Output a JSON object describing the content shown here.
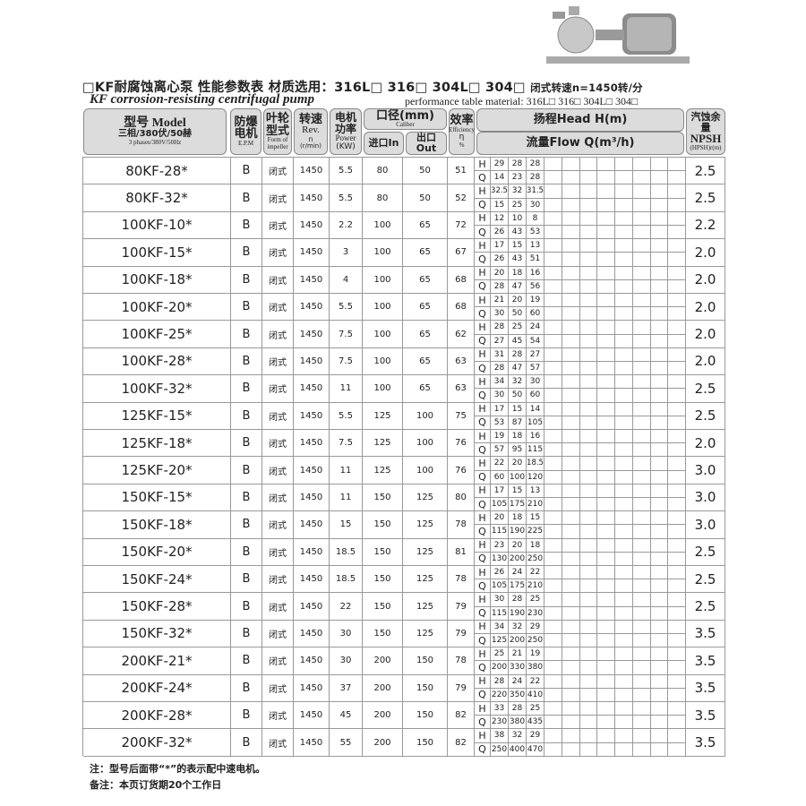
{
  "title": {
    "cn_prefix": "□KF耐腐蚀离心泵  性能参数表  材质选用：316L□  316□ 304L□ 304□",
    "cn_speed": "闭式转速n=1450转/分",
    "en_title": "KF corrosion-resisting centrifugal pump",
    "en_subtitle": "performance table  material:  316L□  316□  304L□ 304□"
  },
  "header": {
    "model_cn": "型号 Model",
    "model_sub": "三相/380伏/50赫",
    "model_en": "3 phases/380V/50Hz",
    "epm_cn": "防爆电机",
    "epm_en": "E.P.M",
    "impeller_cn": "叶轮型式",
    "impeller_en": "Form of impeller",
    "rev_cn": "转速",
    "rev_en": "Rev.",
    "rev_n": "n",
    "rev_unit": "(r/min)",
    "power_cn": "电机功率",
    "power_en": "Power",
    "power_unit": "(KW)",
    "caliber_cn": "口径(mm)",
    "caliber_en": "Caliber",
    "in_label": "进口In",
    "out_label": "出口Out",
    "eff_cn": "效率",
    "eff_en": "Efficiency",
    "eff_sym": "η",
    "eff_unit": "%",
    "head_label": "扬程Head H(m)",
    "flow_label": "流量Flow Q(m³/h)",
    "npsh_cn": "汽蚀余量",
    "npsh_en": "NPSH",
    "npsh_unit": "(HPSH)r(m)"
  },
  "rows": [
    {
      "model": "80KF-28*",
      "epm": "B",
      "impeller": "闭式",
      "rev": "1450",
      "power": "5.5",
      "in": "80",
      "out": "50",
      "eff": "51",
      "H": [
        "29",
        "28",
        "28"
      ],
      "Q": [
        "14",
        "23",
        "28"
      ],
      "npsh": "2.5"
    },
    {
      "model": "80KF-32*",
      "epm": "B",
      "impeller": "闭式",
      "rev": "1450",
      "power": "5.5",
      "in": "80",
      "out": "50",
      "eff": "52",
      "H": [
        "32.5",
        "32",
        "31.5"
      ],
      "Q": [
        "15",
        "25",
        "30"
      ],
      "npsh": "2.5"
    },
    {
      "model": "100KF-10*",
      "epm": "B",
      "impeller": "闭式",
      "rev": "1450",
      "power": "2.2",
      "in": "100",
      "out": "65",
      "eff": "72",
      "H": [
        "12",
        "10",
        "8"
      ],
      "Q": [
        "26",
        "43",
        "53"
      ],
      "npsh": "2.2"
    },
    {
      "model": "100KF-15*",
      "epm": "B",
      "impeller": "闭式",
      "rev": "1450",
      "power": "3",
      "in": "100",
      "out": "65",
      "eff": "67",
      "H": [
        "17",
        "15",
        "13"
      ],
      "Q": [
        "26",
        "43",
        "51"
      ],
      "npsh": "2.0"
    },
    {
      "model": "100KF-18*",
      "epm": "B",
      "impeller": "闭式",
      "rev": "1450",
      "power": "4",
      "in": "100",
      "out": "65",
      "eff": "68",
      "H": [
        "20",
        "18",
        "16"
      ],
      "Q": [
        "28",
        "47",
        "56"
      ],
      "npsh": "2.0"
    },
    {
      "model": "100KF-20*",
      "epm": "B",
      "impeller": "闭式",
      "rev": "1450",
      "power": "5.5",
      "in": "100",
      "out": "65",
      "eff": "68",
      "H": [
        "21",
        "20",
        "19"
      ],
      "Q": [
        "30",
        "50",
        "60"
      ],
      "npsh": "2.0"
    },
    {
      "model": "100KF-25*",
      "epm": "B",
      "impeller": "闭式",
      "rev": "1450",
      "power": "7.5",
      "in": "100",
      "out": "65",
      "eff": "62",
      "H": [
        "28",
        "25",
        "24"
      ],
      "Q": [
        "27",
        "45",
        "54"
      ],
      "npsh": "2.0"
    },
    {
      "model": "100KF-28*",
      "epm": "B",
      "impeller": "闭式",
      "rev": "1450",
      "power": "7.5",
      "in": "100",
      "out": "65",
      "eff": "63",
      "H": [
        "31",
        "28",
        "27"
      ],
      "Q": [
        "28",
        "47",
        "57"
      ],
      "npsh": "2.0"
    },
    {
      "model": "100KF-32*",
      "epm": "B",
      "impeller": "闭式",
      "rev": "1450",
      "power": "11",
      "in": "100",
      "out": "65",
      "eff": "63",
      "H": [
        "34",
        "32",
        "30"
      ],
      "Q": [
        "30",
        "50",
        "60"
      ],
      "npsh": "2.5"
    },
    {
      "model": "125KF-15*",
      "epm": "B",
      "impeller": "闭式",
      "rev": "1450",
      "power": "5.5",
      "in": "125",
      "out": "100",
      "eff": "75",
      "H": [
        "17",
        "15",
        "14"
      ],
      "Q": [
        "53",
        "87",
        "105"
      ],
      "npsh": "2.5"
    },
    {
      "model": "125KF-18*",
      "epm": "B",
      "impeller": "闭式",
      "rev": "1450",
      "power": "7.5",
      "in": "125",
      "out": "100",
      "eff": "76",
      "H": [
        "19",
        "18",
        "16"
      ],
      "Q": [
        "57",
        "95",
        "115"
      ],
      "npsh": "2.0"
    },
    {
      "model": "125KF-20*",
      "epm": "B",
      "impeller": "闭式",
      "rev": "1450",
      "power": "11",
      "in": "125",
      "out": "100",
      "eff": "76",
      "H": [
        "22",
        "20",
        "18.5"
      ],
      "Q": [
        "60",
        "100",
        "120"
      ],
      "npsh": "3.0"
    },
    {
      "model": "150KF-15*",
      "epm": "B",
      "impeller": "闭式",
      "rev": "1450",
      "power": "11",
      "in": "150",
      "out": "125",
      "eff": "80",
      "H": [
        "17",
        "15",
        "13"
      ],
      "Q": [
        "105",
        "175",
        "210"
      ],
      "npsh": "3.0"
    },
    {
      "model": "150KF-18*",
      "epm": "B",
      "impeller": "闭式",
      "rev": "1450",
      "power": "15",
      "in": "150",
      "out": "125",
      "eff": "78",
      "H": [
        "20",
        "18",
        "15"
      ],
      "Q": [
        "115",
        "190",
        "225"
      ],
      "npsh": "3.0"
    },
    {
      "model": "150KF-20*",
      "epm": "B",
      "impeller": "闭式",
      "rev": "1450",
      "power": "18.5",
      "in": "150",
      "out": "125",
      "eff": "81",
      "H": [
        "23",
        "20",
        "18"
      ],
      "Q": [
        "130",
        "200",
        "250"
      ],
      "npsh": "2.5"
    },
    {
      "model": "150KF-24*",
      "epm": "B",
      "impeller": "闭式",
      "rev": "1450",
      "power": "18.5",
      "in": "150",
      "out": "125",
      "eff": "78",
      "H": [
        "26",
        "24",
        "22"
      ],
      "Q": [
        "105",
        "175",
        "210"
      ],
      "npsh": "2.5"
    },
    {
      "model": "150KF-28*",
      "epm": "B",
      "impeller": "闭式",
      "rev": "1450",
      "power": "22",
      "in": "150",
      "out": "125",
      "eff": "79",
      "H": [
        "30",
        "28",
        "25"
      ],
      "Q": [
        "115",
        "190",
        "230"
      ],
      "npsh": "2.5"
    },
    {
      "model": "150KF-32*",
      "epm": "B",
      "impeller": "闭式",
      "rev": "1450",
      "power": "30",
      "in": "150",
      "out": "125",
      "eff": "79",
      "H": [
        "34",
        "32",
        "29"
      ],
      "Q": [
        "125",
        "200",
        "250"
      ],
      "npsh": "3.5"
    },
    {
      "model": "200KF-21*",
      "epm": "B",
      "impeller": "闭式",
      "rev": "1450",
      "power": "30",
      "in": "200",
      "out": "150",
      "eff": "78",
      "H": [
        "25",
        "21",
        "19"
      ],
      "Q": [
        "200",
        "330",
        "380"
      ],
      "npsh": "3.5"
    },
    {
      "model": "200KF-24*",
      "epm": "B",
      "impeller": "闭式",
      "rev": "1450",
      "power": "37",
      "in": "200",
      "out": "150",
      "eff": "79",
      "H": [
        "28",
        "24",
        "22"
      ],
      "Q": [
        "220",
        "350",
        "410"
      ],
      "npsh": "3.5"
    },
    {
      "model": "200KF-28*",
      "epm": "B",
      "impeller": "闭式",
      "rev": "1450",
      "power": "45",
      "in": "200",
      "out": "150",
      "eff": "82",
      "H": [
        "33",
        "28",
        "25"
      ],
      "Q": [
        "230",
        "380",
        "435"
      ],
      "npsh": "3.5"
    },
    {
      "model": "200KF-32*",
      "epm": "B",
      "impeller": "闭式",
      "rev": "1450",
      "power": "55",
      "in": "200",
      "out": "150",
      "eff": "82",
      "H": [
        "38",
        "32",
        "29"
      ],
      "Q": [
        "250",
        "400",
        "470"
      ],
      "npsh": "3.5"
    }
  ],
  "hq_labels": {
    "h": "H",
    "q": "Q"
  },
  "notes": {
    "note1": "注：型号后面带“*”的表示配中速电机。",
    "note2": "备注：本页订货期20个工作日"
  }
}
